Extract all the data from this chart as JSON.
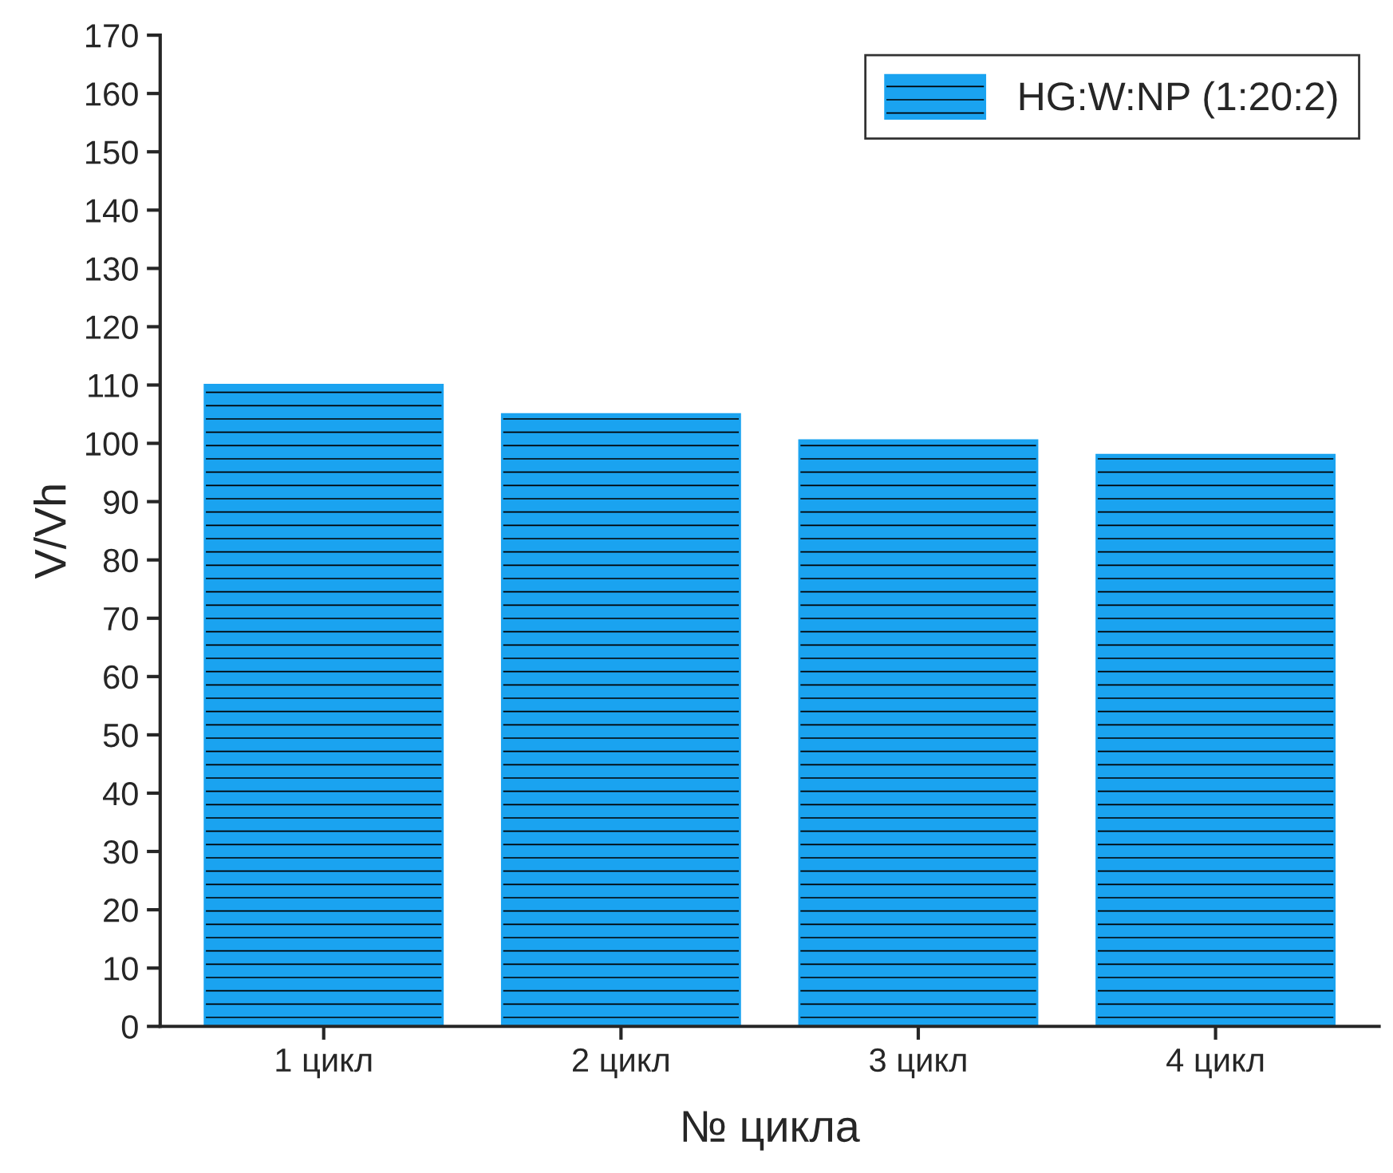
{
  "chart_data": {
    "type": "bar",
    "xlabel": "№ цикла",
    "ylabel": "V/Vh",
    "categories": [
      "1 цикл",
      "2 цикл",
      "3 цикл",
      "4 цикл"
    ],
    "series": [
      {
        "name": "HG:W:NP (1:20:2)",
        "color": "#1aa3f0",
        "values": [
          110,
          105,
          100.5,
          98
        ]
      }
    ],
    "ylim": [
      0,
      170
    ],
    "yticks": [
      0,
      10,
      20,
      30,
      40,
      50,
      60,
      70,
      80,
      90,
      100,
      110,
      120,
      130,
      140,
      150,
      160,
      170
    ],
    "grid": false,
    "legend": "top right"
  }
}
